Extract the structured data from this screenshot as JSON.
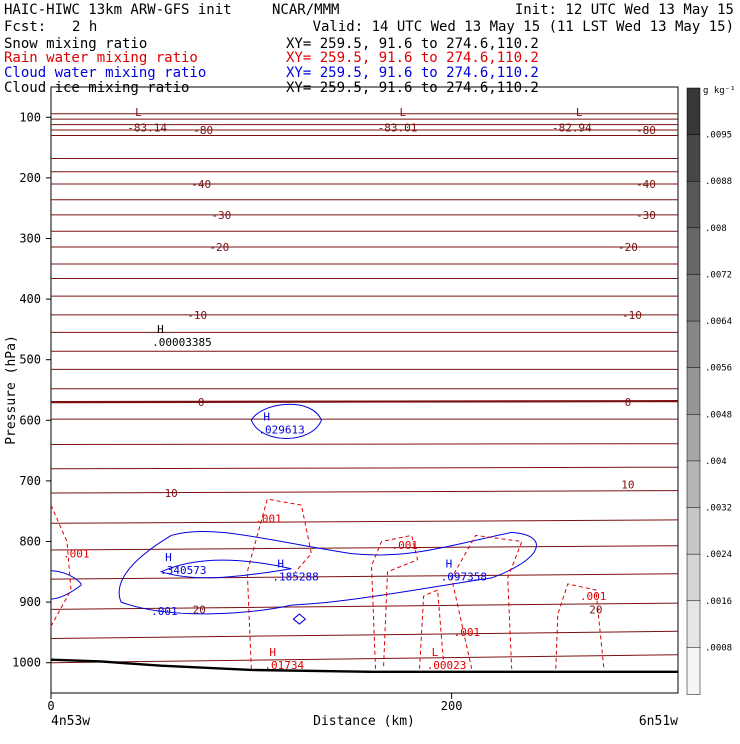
{
  "header": {
    "model": "HAIC-HIWC 13km ARW-GFS init",
    "org": "NCAR/MMM",
    "init": "Init: 12 UTC Wed 13 May 15",
    "fcst_label": "Fcst:",
    "fcst_value": "2 h",
    "valid": "Valid: 14 UTC Wed 13 May 15 (11 LST Wed 13 May 15)",
    "fields": [
      {
        "name": "Snow mixing ratio",
        "xy": "XY= 259.5, 91.6 to 274.6,110.2",
        "color": "#000000"
      },
      {
        "name": "Rain water mixing ratio",
        "xy": "XY= 259.5, 91.6 to 274.6,110.2",
        "color": "#e00000"
      },
      {
        "name": "Cloud water mixing ratio",
        "xy": "XY= 259.5, 91.6 to 274.6,110.2",
        "color": "#0000e0"
      },
      {
        "name": "Cloud ice mixing ratio",
        "xy": "XY= 259.5, 91.6 to 274.6,110.2",
        "color": "#000000"
      }
    ]
  },
  "chart_data": {
    "type": "cross-section contour",
    "ylabel": "Pressure (hPa)",
    "xlabel": "Distance (km)",
    "x_ticks": [
      0,
      200
    ],
    "x_range": [
      0,
      313
    ],
    "y_ticks": [
      100,
      200,
      300,
      400,
      500,
      600,
      700,
      800,
      900,
      1000
    ],
    "y_range": [
      50,
      1050
    ],
    "left_endpoint": "4n53w",
    "right_endpoint": "6n51w",
    "colorbar": {
      "unit": "g kg⁻¹",
      "labels": [
        ".0095",
        ".0088",
        ".008",
        ".0072",
        ".0064",
        ".0056",
        ".0048",
        ".004",
        ".0032",
        ".0024",
        ".0016",
        ".0008"
      ]
    },
    "temperature_labels": [
      {
        "text": "-83.14",
        "x": 48,
        "p": 117
      },
      {
        "text": "-80",
        "x": 76,
        "p": 121
      },
      {
        "text": "-83.01",
        "x": 173,
        "p": 117
      },
      {
        "text": "-82.94",
        "x": 260,
        "p": 117
      },
      {
        "text": "-80",
        "x": 297,
        "p": 121
      },
      {
        "text": "-40",
        "x": 75,
        "p": 210
      },
      {
        "text": "-40",
        "x": 297,
        "p": 210
      },
      {
        "text": "-30",
        "x": 85,
        "p": 261
      },
      {
        "text": "-30",
        "x": 297,
        "p": 261
      },
      {
        "text": "-20",
        "x": 84,
        "p": 314
      },
      {
        "text": "-20",
        "x": 288,
        "p": 314
      },
      {
        "text": "-10",
        "x": 73,
        "p": 426
      },
      {
        "text": "-10",
        "x": 290,
        "p": 426
      },
      {
        "text": "0",
        "x": 75,
        "p": 570
      },
      {
        "text": "0",
        "x": 288,
        "p": 570
      },
      {
        "text": "10",
        "x": 60,
        "p": 720
      },
      {
        "text": "10",
        "x": 288,
        "p": 706
      },
      {
        "text": "20",
        "x": 74,
        "p": 912
      },
      {
        "text": "20",
        "x": 272,
        "p": 912
      }
    ],
    "extrema": [
      {
        "kind": "L",
        "value": "",
        "x": 42,
        "p": 98,
        "color": "#7a1010"
      },
      {
        "kind": "L",
        "value": "",
        "x": 174,
        "p": 98,
        "color": "#7a1010"
      },
      {
        "kind": "L",
        "value": "",
        "x": 262,
        "p": 98,
        "color": "#7a1010"
      },
      {
        "kind": "H",
        "value": ".00003385",
        "x": 53,
        "p": 456,
        "color": "#000000"
      },
      {
        "kind": "H",
        "value": ".029613",
        "x": 106,
        "p": 600,
        "color": "#0000e0"
      },
      {
        "kind": "H",
        "value": ".340573",
        "x": 57,
        "p": 832,
        "color": "#0000e0"
      },
      {
        "kind": "H",
        "value": ".185288",
        "x": 113,
        "p": 843,
        "color": "#0000e0"
      },
      {
        "kind": "H",
        "value": ".097358",
        "x": 197,
        "p": 843,
        "color": "#0000e0"
      },
      {
        "kind": "H",
        "value": ".01734",
        "x": 109,
        "p": 989,
        "color": "#e00000"
      },
      {
        "kind": "L",
        "value": ".00023",
        "x": 190,
        "p": 989,
        "color": "#e00000"
      }
    ],
    "contour_labels": [
      {
        "text": ".001",
        "x": 50,
        "p": 915,
        "color": "#0000e0"
      },
      {
        "text": ".001",
        "x": 6,
        "p": 820,
        "color": "#e00000"
      },
      {
        "text": ".001",
        "x": 102,
        "p": 762,
        "color": "#e00000"
      },
      {
        "text": ".001",
        "x": 170,
        "p": 806,
        "color": "#e00000"
      },
      {
        "text": ".001",
        "x": 201,
        "p": 949,
        "color": "#e00000"
      },
      {
        "text": ".001",
        "x": 264,
        "p": 890,
        "color": "#e00000"
      }
    ]
  }
}
